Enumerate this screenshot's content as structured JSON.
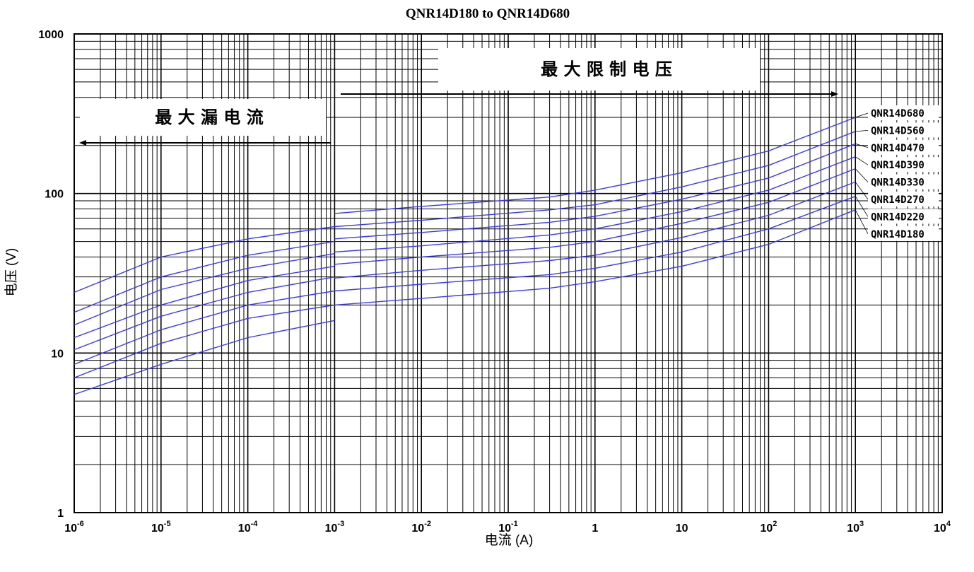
{
  "chart_data": {
    "type": "line",
    "title": "QNR14D180 to QNR14D680",
    "xlabel": "电流 (A)",
    "ylabel": "电压 (V)",
    "xscale": "log",
    "yscale": "log",
    "xlim": [
      1e-06,
      10000.0
    ],
    "ylim": [
      1,
      1000
    ],
    "grid": true,
    "xticks": [
      {
        "base": "10",
        "exp": "-6"
      },
      {
        "base": "10",
        "exp": "-5"
      },
      {
        "base": "10",
        "exp": "-4"
      },
      {
        "base": "10",
        "exp": "-3"
      },
      {
        "base": "10",
        "exp": "-2"
      },
      {
        "base": "10",
        "exp": "-1"
      },
      {
        "base": "1",
        "exp": ""
      },
      {
        "base": "10",
        "exp": ""
      },
      {
        "base": "10",
        "exp": "2"
      },
      {
        "base": "10",
        "exp": "3"
      },
      {
        "base": "10",
        "exp": "4"
      }
    ],
    "yticks": [
      "1",
      "10",
      "100",
      "1000"
    ],
    "annotations": {
      "leakage": "最 大 漏 电 流",
      "clamping": "最 大 限 制 电 压"
    },
    "line_color": "#3a3aee",
    "leakage_series": [
      {
        "name": "QNR14D680",
        "x": [
          1e-06,
          1e-05,
          0.0001,
          0.001
        ],
        "y": [
          24,
          40,
          52,
          62
        ]
      },
      {
        "name": "QNR14D560",
        "x": [
          1e-06,
          1e-05,
          0.0001,
          0.001
        ],
        "y": [
          18,
          30,
          41,
          50
        ]
      },
      {
        "name": "QNR14D470",
        "x": [
          1e-06,
          1e-05,
          0.0001,
          0.001
        ],
        "y": [
          15,
          25,
          34,
          42
        ]
      },
      {
        "name": "QNR14D390",
        "x": [
          1e-06,
          1e-05,
          0.0001,
          0.001
        ],
        "y": [
          12.5,
          20,
          28.5,
          35
        ]
      },
      {
        "name": "QNR14D330",
        "x": [
          1e-06,
          1e-05,
          0.0001,
          0.001
        ],
        "y": [
          10.5,
          17,
          24,
          30
        ]
      },
      {
        "name": "QNR14D270",
        "x": [
          1e-06,
          1e-05,
          0.0001,
          0.001
        ],
        "y": [
          8.5,
          14,
          20,
          24.5
        ]
      },
      {
        "name": "QNR14D220",
        "x": [
          1e-06,
          1e-05,
          0.0001,
          0.001
        ],
        "y": [
          7,
          11.5,
          16.5,
          20
        ]
      },
      {
        "name": "QNR14D180",
        "x": [
          1e-06,
          1e-05,
          0.0001,
          0.001
        ],
        "y": [
          5.5,
          8.5,
          12.5,
          16
        ]
      }
    ],
    "series": [
      {
        "name": "QNR14D680",
        "x": [
          0.001,
          0.01,
          0.3,
          1,
          10,
          100,
          1000
        ],
        "y": [
          75,
          83,
          95,
          105,
          135,
          185,
          300
        ]
      },
      {
        "name": "QNR14D560",
        "x": [
          0.001,
          0.01,
          0.3,
          1,
          10,
          100,
          1000
        ],
        "y": [
          62,
          68,
          79,
          85,
          110,
          150,
          245
        ]
      },
      {
        "name": "QNR14D470",
        "x": [
          0.001,
          0.01,
          0.3,
          1,
          10,
          100,
          1000
        ],
        "y": [
          52,
          57,
          66,
          72,
          92,
          125,
          205
        ]
      },
      {
        "name": "QNR14D390",
        "x": [
          0.001,
          0.01,
          0.3,
          1,
          10,
          100,
          1000
        ],
        "y": [
          43,
          47,
          55,
          60,
          77,
          105,
          170
        ]
      },
      {
        "name": "QNR14D330",
        "x": [
          0.001,
          0.01,
          0.3,
          1,
          10,
          100,
          1000
        ],
        "y": [
          36,
          40,
          46,
          50,
          65,
          88,
          143
        ]
      },
      {
        "name": "QNR14D270",
        "x": [
          0.001,
          0.01,
          0.3,
          1,
          10,
          100,
          1000
        ],
        "y": [
          29.5,
          33,
          38,
          41,
          53,
          73,
          118
        ]
      },
      {
        "name": "QNR14D220",
        "x": [
          0.001,
          0.01,
          0.3,
          1,
          10,
          100,
          1000
        ],
        "y": [
          24.5,
          27,
          31,
          34,
          43,
          60,
          96
        ]
      },
      {
        "name": "QNR14D180",
        "x": [
          0.001,
          0.01,
          0.3,
          1,
          10,
          100,
          1000
        ],
        "y": [
          20,
          22,
          25.5,
          28,
          35,
          48,
          79
        ]
      }
    ]
  }
}
